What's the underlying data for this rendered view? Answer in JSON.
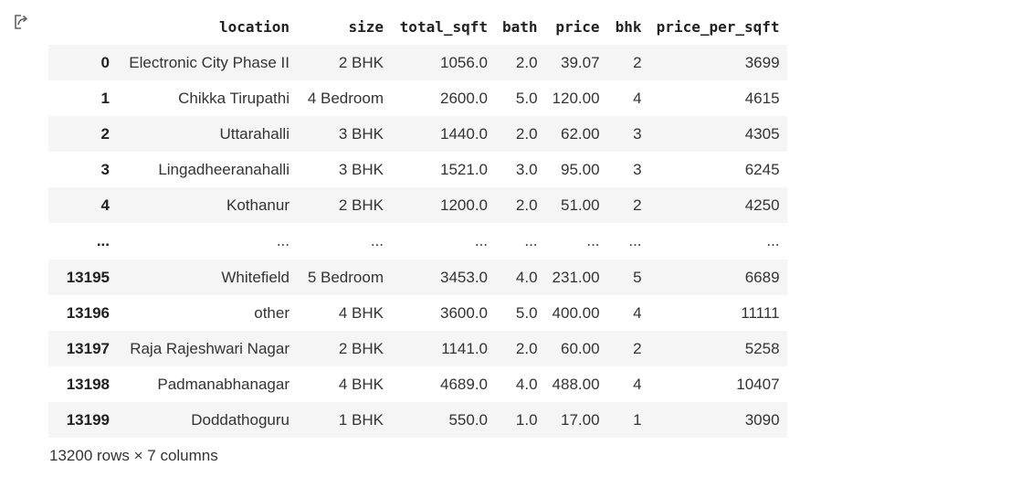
{
  "output_icon": "output-arrow-icon",
  "table": {
    "columns": [
      "location",
      "size",
      "total_sqft",
      "bath",
      "price",
      "bhk",
      "price_per_sqft"
    ],
    "rows": [
      {
        "index": "0",
        "cells": [
          "Electronic City Phase II",
          "2 BHK",
          "1056.0",
          "2.0",
          "39.07",
          "2",
          "3699"
        ]
      },
      {
        "index": "1",
        "cells": [
          "Chikka Tirupathi",
          "4 Bedroom",
          "2600.0",
          "5.0",
          "120.00",
          "4",
          "4615"
        ]
      },
      {
        "index": "2",
        "cells": [
          "Uttarahalli",
          "3 BHK",
          "1440.0",
          "2.0",
          "62.00",
          "3",
          "4305"
        ]
      },
      {
        "index": "3",
        "cells": [
          "Lingadheeranahalli",
          "3 BHK",
          "1521.0",
          "3.0",
          "95.00",
          "3",
          "6245"
        ]
      },
      {
        "index": "4",
        "cells": [
          "Kothanur",
          "2 BHK",
          "1200.0",
          "2.0",
          "51.00",
          "2",
          "4250"
        ]
      },
      {
        "index": "...",
        "cells": [
          "...",
          "...",
          "...",
          "...",
          "...",
          "...",
          "..."
        ]
      },
      {
        "index": "13195",
        "cells": [
          "Whitefield",
          "5 Bedroom",
          "3453.0",
          "4.0",
          "231.00",
          "5",
          "6689"
        ]
      },
      {
        "index": "13196",
        "cells": [
          "other",
          "4 BHK",
          "3600.0",
          "5.0",
          "400.00",
          "4",
          "11111"
        ]
      },
      {
        "index": "13197",
        "cells": [
          "Raja Rajeshwari Nagar",
          "2 BHK",
          "1141.0",
          "2.0",
          "60.00",
          "2",
          "5258"
        ]
      },
      {
        "index": "13198",
        "cells": [
          "Padmanabhanagar",
          "4 BHK",
          "4689.0",
          "4.0",
          "488.00",
          "4",
          "10407"
        ]
      },
      {
        "index": "13199",
        "cells": [
          "Doddathoguru",
          "1 BHK",
          "550.0",
          "1.0",
          "17.00",
          "1",
          "3090"
        ]
      }
    ]
  },
  "shape_text": "13200 rows × 7 columns"
}
